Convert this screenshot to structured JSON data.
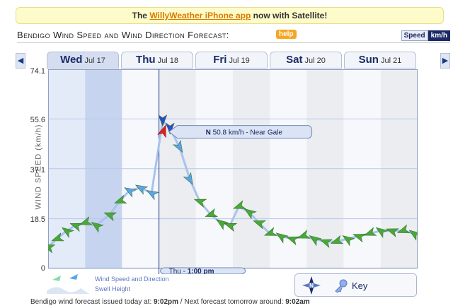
{
  "banner": {
    "prefix": "The ",
    "link": "WillyWeather iPhone app",
    "suffix": " now with Satellite!"
  },
  "header": {
    "title": "Bendigo Wind Speed and Wind Direction Forecast:",
    "help": "help",
    "units_label": "Speed",
    "units_value": "km/h"
  },
  "nav": {
    "prev": "◀",
    "next": "▶"
  },
  "tabs": [
    {
      "day": "Wed",
      "date": "Jul 17"
    },
    {
      "day": "Thu",
      "date": "Jul 18"
    },
    {
      "day": "Fri",
      "date": "Jul 19"
    },
    {
      "day": "Sat",
      "date": "Jul 20"
    },
    {
      "day": "Sun",
      "date": "Jul 21"
    }
  ],
  "colors": {
    "light_wind": "#4aa83a",
    "moderate_wind": "#5aa4ea",
    "strong_wind": "#2a4fc2",
    "near_gale": "#e0201c",
    "selection_line": "#1b3a8a"
  },
  "chart_data": {
    "type": "line",
    "ylabel": "WIND SPEED (km/h)",
    "ylim": [
      0.0,
      74.1
    ],
    "y_ticks": [
      0.0,
      18.5,
      37.1,
      55.6,
      74.1
    ],
    "categories": [
      "Wed Jul 17",
      "Thu Jul 18",
      "Fri Jul 19",
      "Sat Jul 20",
      "Sun Jul 21"
    ],
    "series": [
      {
        "values": [
          {
            "day": 0.0,
            "speed": 8
          },
          {
            "day": 0.12,
            "speed": 11
          },
          {
            "day": 0.25,
            "speed": 14
          },
          {
            "day": 0.37,
            "speed": 16
          },
          {
            "day": 0.5,
            "speed": 17
          },
          {
            "day": 0.65,
            "speed": 16
          },
          {
            "day": 0.83,
            "speed": 20
          },
          {
            "day": 0.97,
            "speed": 25
          },
          {
            "day": 1.1,
            "speed": 29
          },
          {
            "day": 1.25,
            "speed": 30
          },
          {
            "day": 1.4,
            "speed": 28
          },
          {
            "day": 1.55,
            "speed": 55
          },
          {
            "day": 1.65,
            "speed": 52
          },
          {
            "day": 1.78,
            "speed": 45
          },
          {
            "day": 1.92,
            "speed": 33
          },
          {
            "day": 2.05,
            "speed": 25
          },
          {
            "day": 2.2,
            "speed": 20
          },
          {
            "day": 2.34,
            "speed": 17
          },
          {
            "day": 2.46,
            "speed": 16
          },
          {
            "day": 2.58,
            "speed": 23
          },
          {
            "day": 2.72,
            "speed": 21
          },
          {
            "day": 2.85,
            "speed": 17
          },
          {
            "day": 3.0,
            "speed": 13
          },
          {
            "day": 3.15,
            "speed": 12
          },
          {
            "day": 3.3,
            "speed": 11
          },
          {
            "day": 3.45,
            "speed": 12
          },
          {
            "day": 3.6,
            "speed": 11
          },
          {
            "day": 3.75,
            "speed": 10
          },
          {
            "day": 3.9,
            "speed": 10
          },
          {
            "day": 4.05,
            "speed": 11
          },
          {
            "day": 4.2,
            "speed": 12
          },
          {
            "day": 4.35,
            "speed": 13
          },
          {
            "day": 4.5,
            "speed": 14
          },
          {
            "day": 4.65,
            "speed": 14
          },
          {
            "day": 4.8,
            "speed": 14
          },
          {
            "day": 4.95,
            "speed": 13
          }
        ]
      }
    ],
    "selected_point": {
      "day": 1.5,
      "speed": 50.8
    },
    "tooltip": {
      "direction": "N",
      "speed": "50.8 km/h",
      "description": "Near Gale"
    },
    "time_marker": {
      "day": "Thu",
      "time": "1:00 pm"
    },
    "legend": [
      "Wind Speed and Direction",
      "Swell Height"
    ],
    "grid": true
  },
  "legend_key": {
    "label": "Key",
    "compass_letter": "N"
  },
  "footer": {
    "prefix": "Bendigo wind forecast issued today at: ",
    "issued": "9:02pm",
    "middle": " / Next forecast tomorrow around: ",
    "next": "9:02am"
  }
}
